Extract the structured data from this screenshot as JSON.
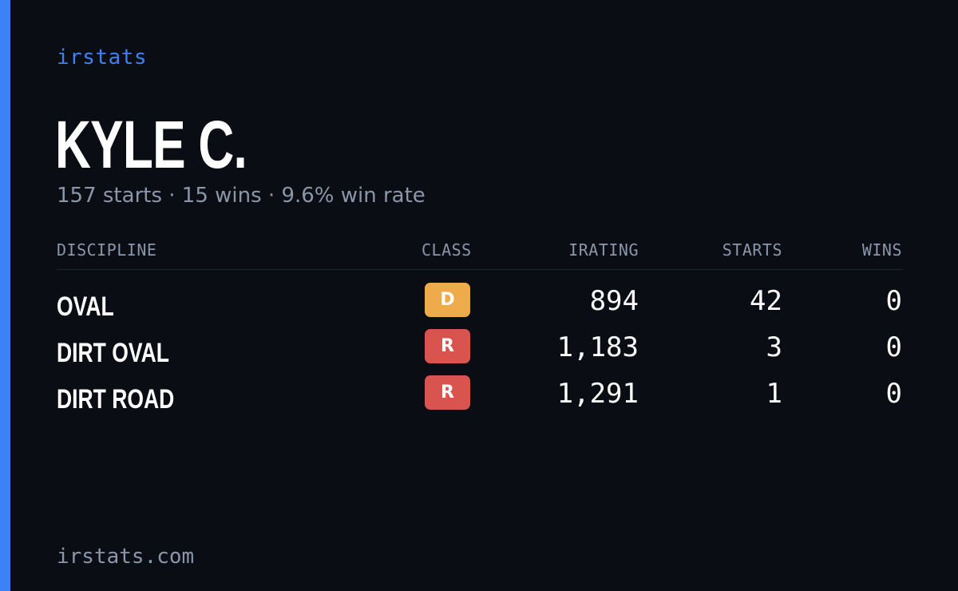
{
  "brand": "irstats",
  "player": {
    "name": "KYLE C.",
    "summary": "157 starts · 15 wins · 9.6% win rate"
  },
  "table": {
    "headers": {
      "discipline": "DISCIPLINE",
      "class": "CLASS",
      "irating": "IRATING",
      "starts": "STARTS",
      "wins": "WINS"
    },
    "rows": [
      {
        "discipline": "OVAL",
        "class": "D",
        "class_color": "#eeab4c",
        "irating": "894",
        "starts": "42",
        "wins": "0"
      },
      {
        "discipline": "DIRT OVAL",
        "class": "R",
        "class_color": "#d9534f",
        "irating": "1,183",
        "starts": "3",
        "wins": "0"
      },
      {
        "discipline": "DIRT ROAD",
        "class": "R",
        "class_color": "#d9534f",
        "irating": "1,291",
        "starts": "1",
        "wins": "0"
      }
    ]
  },
  "footer": {
    "url": "irstats.com"
  },
  "colors": {
    "background": "#0a0d14",
    "accent": "#3b82f6",
    "muted": "#8b96a9",
    "class_d": "#eeab4c",
    "class_r": "#d9534f"
  }
}
